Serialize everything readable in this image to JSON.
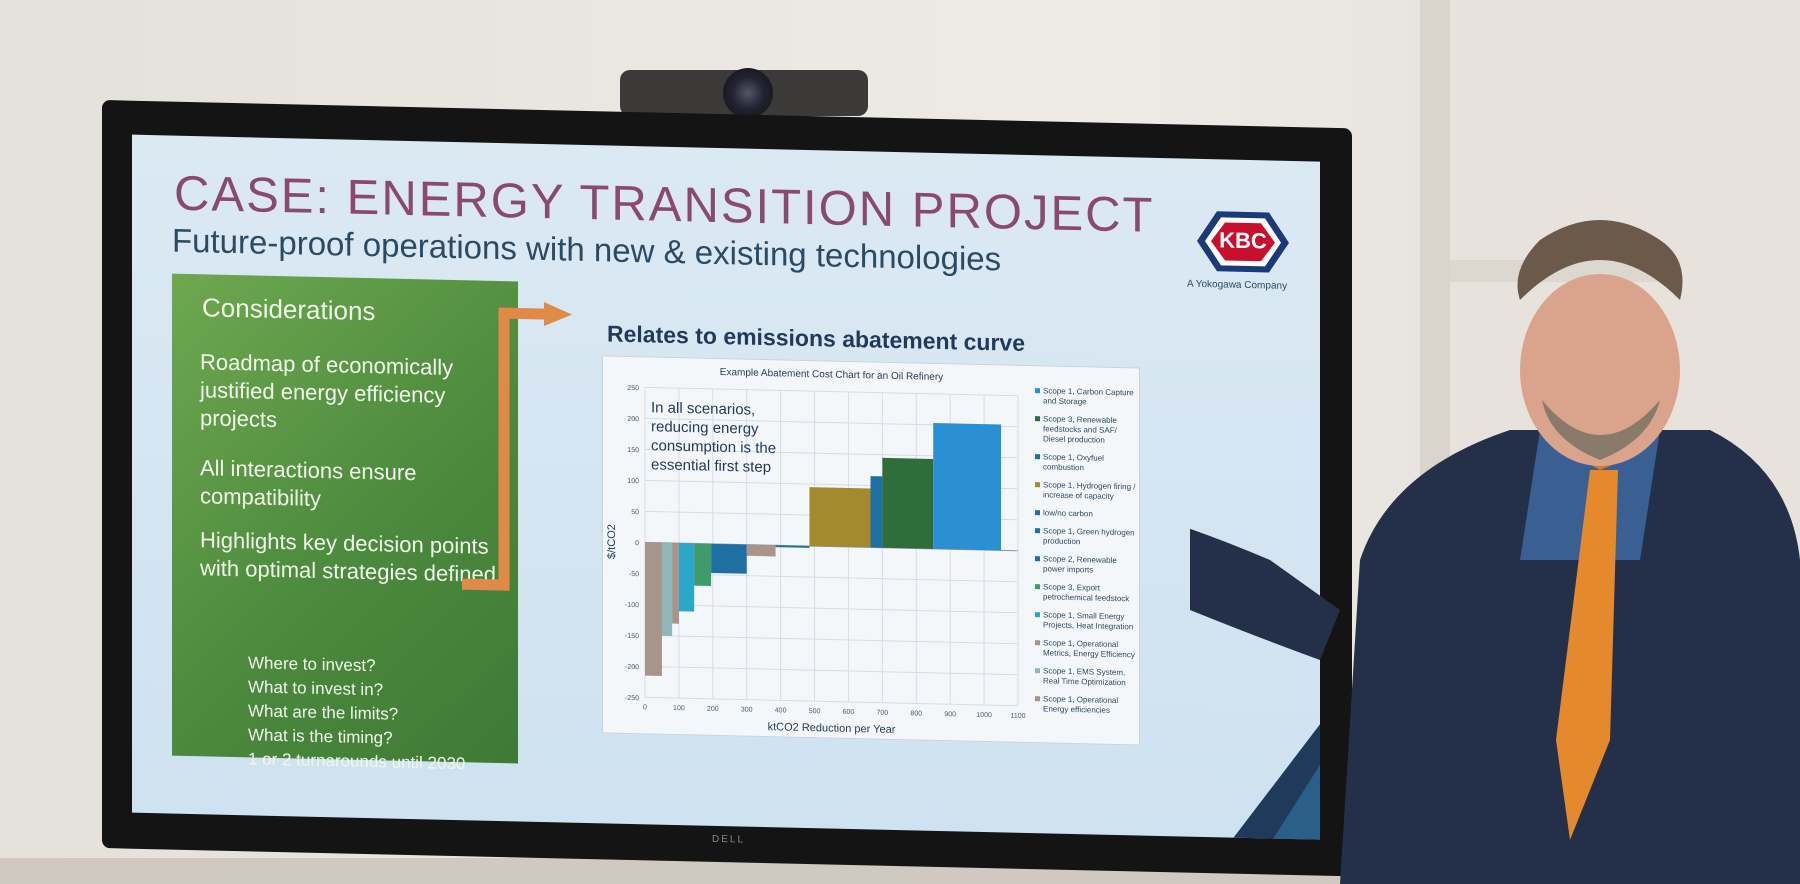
{
  "slide": {
    "title": "CASE: ENERGY TRANSITION PROJECT",
    "subtitle": "Future-proof operations with new & existing technologies",
    "logo_text": "KBC",
    "logo_sub": "A Yokogawa Company"
  },
  "considerations": {
    "heading": "Considerations",
    "items": [
      "Roadmap of economically justified energy efficiency projects",
      "All interactions ensure compatibility",
      "Highlights key decision points with optimal strategies defined"
    ],
    "questions": [
      "Where to invest?",
      "What to invest in?",
      "What are the limits?",
      "What is the timing?",
      "1 or 2 turnarounds until 2030"
    ]
  },
  "chart_heading": "Relates to emissions abatement curve",
  "monitor_brand": "DELL",
  "chart_data": {
    "type": "bar",
    "title": "Example Abatement Cost Chart for an Oil Refinery",
    "xlabel": "ktCO2 Reduction per Year",
    "ylabel": "$/tCO2",
    "xlim": [
      0,
      1100
    ],
    "ylim": [
      -250,
      250
    ],
    "xticks": [
      0,
      100,
      200,
      300,
      400,
      500,
      600,
      700,
      800,
      900,
      1000,
      1100
    ],
    "yticks": [
      250,
      200,
      150,
      100,
      50,
      0,
      -50,
      -100,
      -150,
      -200,
      -250
    ],
    "annotation": "In all scenarios, reducing energy consumption is the essential first step",
    "bars": [
      {
        "x0": 0,
        "x1": 50,
        "value": -215,
        "color": "#a8948a"
      },
      {
        "x0": 50,
        "x1": 80,
        "value": -150,
        "color": "#8fb6b8"
      },
      {
        "x0": 80,
        "x1": 100,
        "value": -130,
        "color": "#a8948a"
      },
      {
        "x0": 100,
        "x1": 145,
        "value": -110,
        "color": "#2aa7c9"
      },
      {
        "x0": 145,
        "x1": 195,
        "value": -68,
        "color": "#3f9a6c"
      },
      {
        "x0": 195,
        "x1": 300,
        "value": -47,
        "color": "#1f6fa3"
      },
      {
        "x0": 300,
        "x1": 385,
        "value": -18,
        "color": "#a8948a"
      },
      {
        "x0": 385,
        "x1": 485,
        "value": -3,
        "color": "#1f6fa3"
      },
      {
        "x0": 485,
        "x1": 665,
        "value": 95,
        "color": "#a48a2f"
      },
      {
        "x0": 665,
        "x1": 700,
        "value": 115,
        "color": "#1f6fa3"
      },
      {
        "x0": 700,
        "x1": 850,
        "value": 145,
        "color": "#2f6e3b"
      },
      {
        "x0": 850,
        "x1": 1050,
        "value": 203,
        "color": "#2a8fd3"
      }
    ],
    "legend": [
      {
        "label": "Scope 1, Carbon Capture and Storage",
        "color": "#2a8fd3"
      },
      {
        "label": "Scope 3, Renewable feedstocks and SAF/ Diesel production",
        "color": "#2f6e3b"
      },
      {
        "label": "Scope 1, Oxyfuel combustion",
        "color": "#1f6fa3"
      },
      {
        "label": "Scope 1, Hydrogen firing / increase of capacity",
        "color": "#a48a2f"
      },
      {
        "label": "low/no carbon",
        "color": "#1f6fa3"
      },
      {
        "label": "Scope 1, Green hydrogen production",
        "color": "#1f6fa3"
      },
      {
        "label": "Scope 2, Renewable power imports",
        "color": "#1f6fa3"
      },
      {
        "label": "Scope 3, Export petrochemical feedstock",
        "color": "#3f9a6c"
      },
      {
        "label": "Scope 1, Small Energy Projects, Heat Integration",
        "color": "#2aa7c9"
      },
      {
        "label": "Scope 1, Operational Metrics, Energy Efficiency",
        "color": "#a8948a"
      },
      {
        "label": "Scope 1, EMS System, Real Time Optimization",
        "color": "#8fb6b8"
      },
      {
        "label": "Scope 1, Operational Energy efficiencies",
        "color": "#a8948a"
      }
    ]
  }
}
